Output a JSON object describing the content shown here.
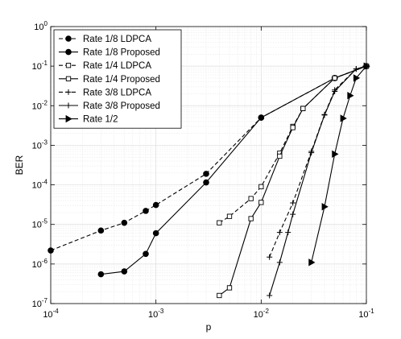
{
  "chart_data": {
    "type": "line",
    "xlabel": "p",
    "ylabel": "BER",
    "xscale": "log",
    "yscale": "log",
    "xlim": [
      0.0001,
      0.1
    ],
    "ylim": [
      1e-07,
      1
    ],
    "grid": "on (major and minor)",
    "legend_location": "top-left",
    "x_ticks": [
      {
        "value": 0.0001,
        "base": "10",
        "exp": "-4"
      },
      {
        "value": 0.001,
        "base": "10",
        "exp": "-3"
      },
      {
        "value": 0.01,
        "base": "10",
        "exp": "-2"
      },
      {
        "value": 0.1,
        "base": "10",
        "exp": "-1"
      }
    ],
    "y_ticks": [
      {
        "value": 1e-07,
        "base": "10",
        "exp": "-7"
      },
      {
        "value": 1e-06,
        "base": "10",
        "exp": "-6"
      },
      {
        "value": 1e-05,
        "base": "10",
        "exp": "-5"
      },
      {
        "value": 0.0001,
        "base": "10",
        "exp": "-4"
      },
      {
        "value": 0.001,
        "base": "10",
        "exp": "-3"
      },
      {
        "value": 0.01,
        "base": "10",
        "exp": "-2"
      },
      {
        "value": 0.1,
        "base": "10",
        "exp": "-1"
      },
      {
        "value": 1,
        "base": "10",
        "exp": "0"
      }
    ],
    "series": [
      {
        "name": "Rate 1/8 LDPCA",
        "marker": "circle",
        "filled": true,
        "dash": "dashed",
        "x": [
          0.0001,
          0.0003,
          0.0005,
          0.0008,
          0.001,
          0.003,
          0.01,
          0.05,
          0.1
        ],
        "y": [
          2.2e-06,
          7e-06,
          1.1e-05,
          2.2e-05,
          3.1e-05,
          0.00019,
          0.005,
          0.05,
          0.1
        ]
      },
      {
        "name": "Rate 1/8 Proposed",
        "marker": "circle",
        "filled": true,
        "dash": "solid",
        "x": [
          0.0003,
          0.0005,
          0.0008,
          0.001,
          0.003,
          0.01,
          0.05,
          0.1
        ],
        "y": [
          5.5e-07,
          6.5e-07,
          1.8e-06,
          6e-06,
          0.000115,
          0.005,
          0.05,
          0.1
        ]
      },
      {
        "name": "Rate 1/4 LDPCA",
        "marker": "square",
        "filled": false,
        "dash": "dashed",
        "x": [
          0.004,
          0.005,
          0.008,
          0.01,
          0.015,
          0.02,
          0.025,
          0.05,
          0.1
        ],
        "y": [
          1.1e-05,
          1.6e-05,
          4.5e-05,
          9e-05,
          0.00063,
          0.003,
          0.0085,
          0.05,
          0.1
        ]
      },
      {
        "name": "Rate 1/4 Proposed",
        "marker": "square",
        "filled": false,
        "dash": "solid",
        "x": [
          0.004,
          0.005,
          0.008,
          0.01,
          0.015,
          0.02,
          0.025,
          0.05,
          0.1
        ],
        "y": [
          1.6e-07,
          2.5e-07,
          1.4e-05,
          3.6e-05,
          0.00053,
          0.0028,
          0.0085,
          0.05,
          0.1
        ]
      },
      {
        "name": "Rate 3/8 LDPCA",
        "marker": "plus",
        "filled": false,
        "dash": "dashed",
        "x": [
          0.012,
          0.015,
          0.02,
          0.03,
          0.04,
          0.05,
          0.08,
          0.1
        ],
        "y": [
          1.5e-06,
          6.3e-06,
          3.5e-05,
          0.0007,
          0.006,
          0.025,
          0.085,
          0.1
        ]
      },
      {
        "name": "Rate 3/8 Proposed",
        "marker": "plus",
        "filled": false,
        "dash": "solid",
        "x": [
          0.012,
          0.015,
          0.018,
          0.02,
          0.03,
          0.04,
          0.05,
          0.08,
          0.1
        ],
        "y": [
          1.6e-07,
          1.1e-06,
          6.3e-06,
          1.8e-05,
          0.00065,
          0.0058,
          0.023,
          0.085,
          0.1
        ]
      },
      {
        "name": "Rate 1/2",
        "marker": "triangle-right",
        "filled": true,
        "dash": "solid",
        "x": [
          0.03,
          0.04,
          0.05,
          0.06,
          0.07,
          0.08,
          0.1
        ],
        "y": [
          1.1e-06,
          2.8e-05,
          0.0006,
          0.0048,
          0.018,
          0.05,
          0.1
        ]
      }
    ]
  }
}
